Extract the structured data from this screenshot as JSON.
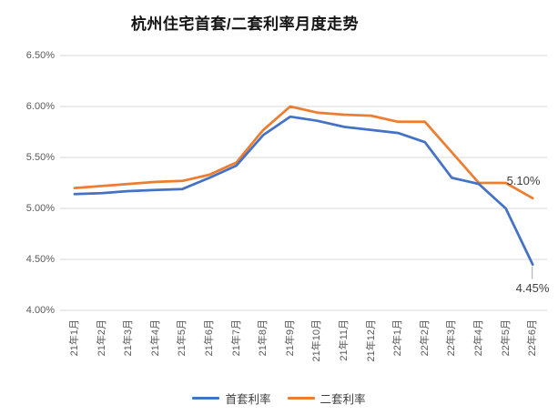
{
  "chart_data": {
    "type": "line",
    "title": "杭州住宅首套/二套利率月度走势",
    "categories": [
      "21年1月",
      "21年2月",
      "21年3月",
      "21年4月",
      "21年5月",
      "21年6月",
      "21年7月",
      "21年8月",
      "21年9月",
      "21年10月",
      "21年11月",
      "21年12月",
      "22年1月",
      "22年2月",
      "22年3月",
      "22年4月",
      "22年5月",
      "22年6月"
    ],
    "series": [
      {
        "name": "首套利率",
        "color": "#4472C4",
        "values": [
          5.14,
          5.15,
          5.17,
          5.18,
          5.19,
          5.3,
          5.42,
          5.72,
          5.9,
          5.86,
          5.8,
          5.77,
          5.74,
          5.65,
          5.3,
          5.24,
          5.0,
          4.45
        ]
      },
      {
        "name": "二套利率",
        "color": "#ED7D31",
        "values": [
          5.2,
          5.22,
          5.24,
          5.26,
          5.27,
          5.33,
          5.45,
          5.77,
          6.0,
          5.94,
          5.92,
          5.91,
          5.85,
          5.85,
          5.55,
          5.25,
          5.25,
          5.1
        ]
      }
    ],
    "xlabel": "",
    "ylabel": "",
    "ylim": [
      4.0,
      6.5
    ],
    "ytick_labels": [
      "6.50%",
      "6.00%",
      "5.50%",
      "5.00%",
      "4.50%",
      "4.00%"
    ],
    "grid": true,
    "legend_position": "bottom",
    "annotations": [
      {
        "text": "5.10%",
        "series": "二套利率",
        "category": "22年6月"
      },
      {
        "text": "4.45%",
        "series": "首套利率",
        "category": "22年6月"
      }
    ]
  },
  "styles": {
    "grid_color": "#d9d9d9",
    "tick_text_color": "#595959",
    "title_color": "#141414",
    "annotation_color": "#404040",
    "leader_line_color": "#a6a6a6",
    "legend_text_color": "#404040"
  }
}
